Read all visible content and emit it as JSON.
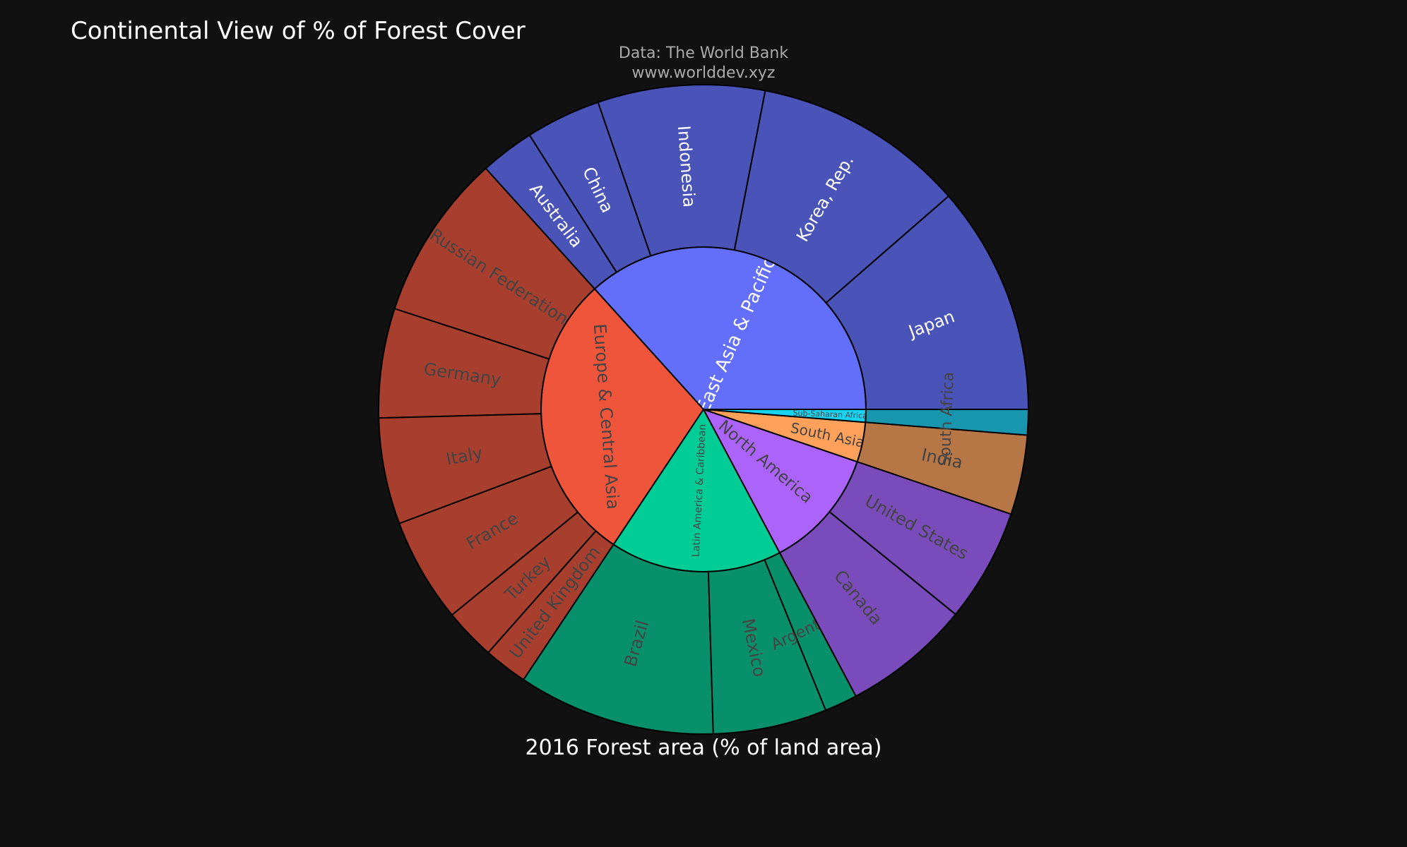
{
  "title": "Continental View of % of Forest Cover",
  "source": {
    "line1": "Data: The World Bank",
    "line2": "www.worlddev.xyz"
  },
  "chart_data": {
    "type": "sunburst",
    "title": "Continental View of % of Forest Cover",
    "xlabel": "2016 Forest area (% of land area)",
    "hierarchy": [
      {
        "name": "East Asia & Pacific",
        "color": "#636efa",
        "child_color": "#4a53b8",
        "text_color": "#ffffff",
        "children": [
          {
            "name": "Japan",
            "value": 68.5
          },
          {
            "name": "Korea, Rep.",
            "value": 63.4
          },
          {
            "name": "Indonesia",
            "value": 49.9
          },
          {
            "name": "China",
            "value": 22.4
          },
          {
            "name": "Australia",
            "value": 16.2
          }
        ]
      },
      {
        "name": "Europe & Central Asia",
        "color": "#ef553b",
        "child_color": "#a83f2e",
        "text_color": "#444444",
        "children": [
          {
            "name": "Russian Federation",
            "value": 49.8
          },
          {
            "name": "Germany",
            "value": 32.7
          },
          {
            "name": "Italy",
            "value": 31.8
          },
          {
            "name": "France",
            "value": 31.2
          },
          {
            "name": "Turkey",
            "value": 15.4
          },
          {
            "name": "United Kingdom",
            "value": 13.1
          }
        ]
      },
      {
        "name": "Latin America & Caribbean",
        "color": "#00cc96",
        "child_color": "#07906a",
        "text_color": "#444444",
        "children": [
          {
            "name": "Brazil",
            "value": 59.0
          },
          {
            "name": "Mexico",
            "value": 34.0
          },
          {
            "name": "Argentina",
            "value": 9.8
          }
        ]
      },
      {
        "name": "North America",
        "color": "#ab63fa",
        "child_color": "#7a4bbb",
        "text_color": "#444444",
        "children": [
          {
            "name": "Canada",
            "value": 38.2
          },
          {
            "name": "United States",
            "value": 33.9
          }
        ]
      },
      {
        "name": "South Asia",
        "color": "#ffa15a",
        "child_color": "#b77645",
        "text_color": "#444444",
        "children": [
          {
            "name": "India",
            "value": 23.8
          }
        ]
      },
      {
        "name": "Sub-Saharan Africa",
        "color": "#19d3f3",
        "child_color": "#1796ae",
        "text_color": "#444444",
        "children": [
          {
            "name": "South Africa",
            "value": 7.6
          }
        ]
      }
    ]
  }
}
